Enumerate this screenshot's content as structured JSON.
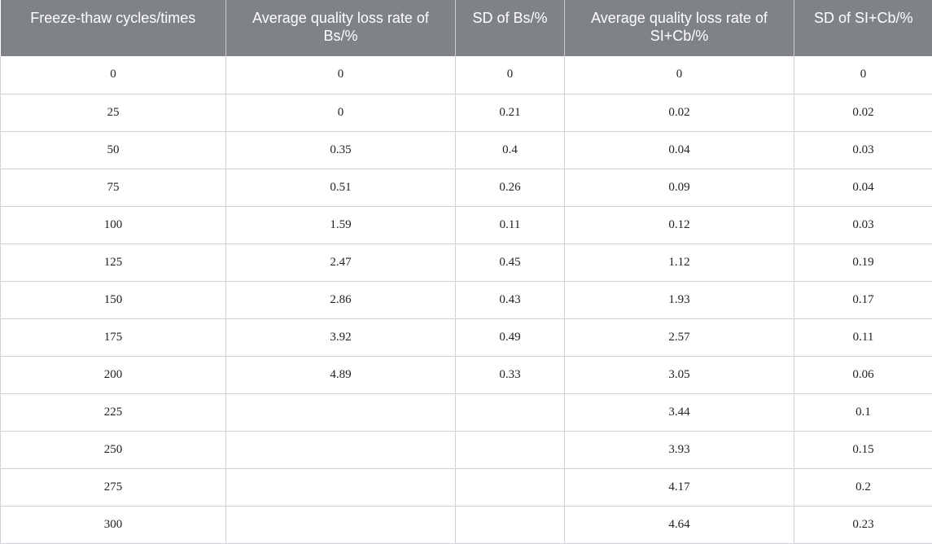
{
  "table": {
    "headers": [
      "Freeze-thaw cycles/times",
      "Average quality loss rate of Bs/%",
      "SD of Bs/%",
      "Average quality loss rate of SI+Cb/%",
      "SD of SI+Cb/%"
    ],
    "rows": [
      [
        "0",
        "0",
        "0",
        "0",
        "0"
      ],
      [
        "25",
        "0",
        "0.21",
        "0.02",
        "0.02"
      ],
      [
        "50",
        "0.35",
        "0.4",
        "0.04",
        "0.03"
      ],
      [
        "75",
        "0.51",
        "0.26",
        "0.09",
        "0.04"
      ],
      [
        "100",
        "1.59",
        "0.11",
        "0.12",
        "0.03"
      ],
      [
        "125",
        "2.47",
        "0.45",
        "1.12",
        "0.19"
      ],
      [
        "150",
        "2.86",
        "0.43",
        "1.93",
        "0.17"
      ],
      [
        "175",
        "3.92",
        "0.49",
        "2.57",
        "0.11"
      ],
      [
        "200",
        "4.89",
        "0.33",
        "3.05",
        "0.06"
      ],
      [
        "225",
        "",
        "",
        "3.44",
        "0.1"
      ],
      [
        "250",
        "",
        "",
        "3.93",
        "0.15"
      ],
      [
        "275",
        "",
        "",
        "4.17",
        "0.2"
      ],
      [
        "300",
        "",
        "",
        "4.64",
        "0.23"
      ]
    ]
  }
}
